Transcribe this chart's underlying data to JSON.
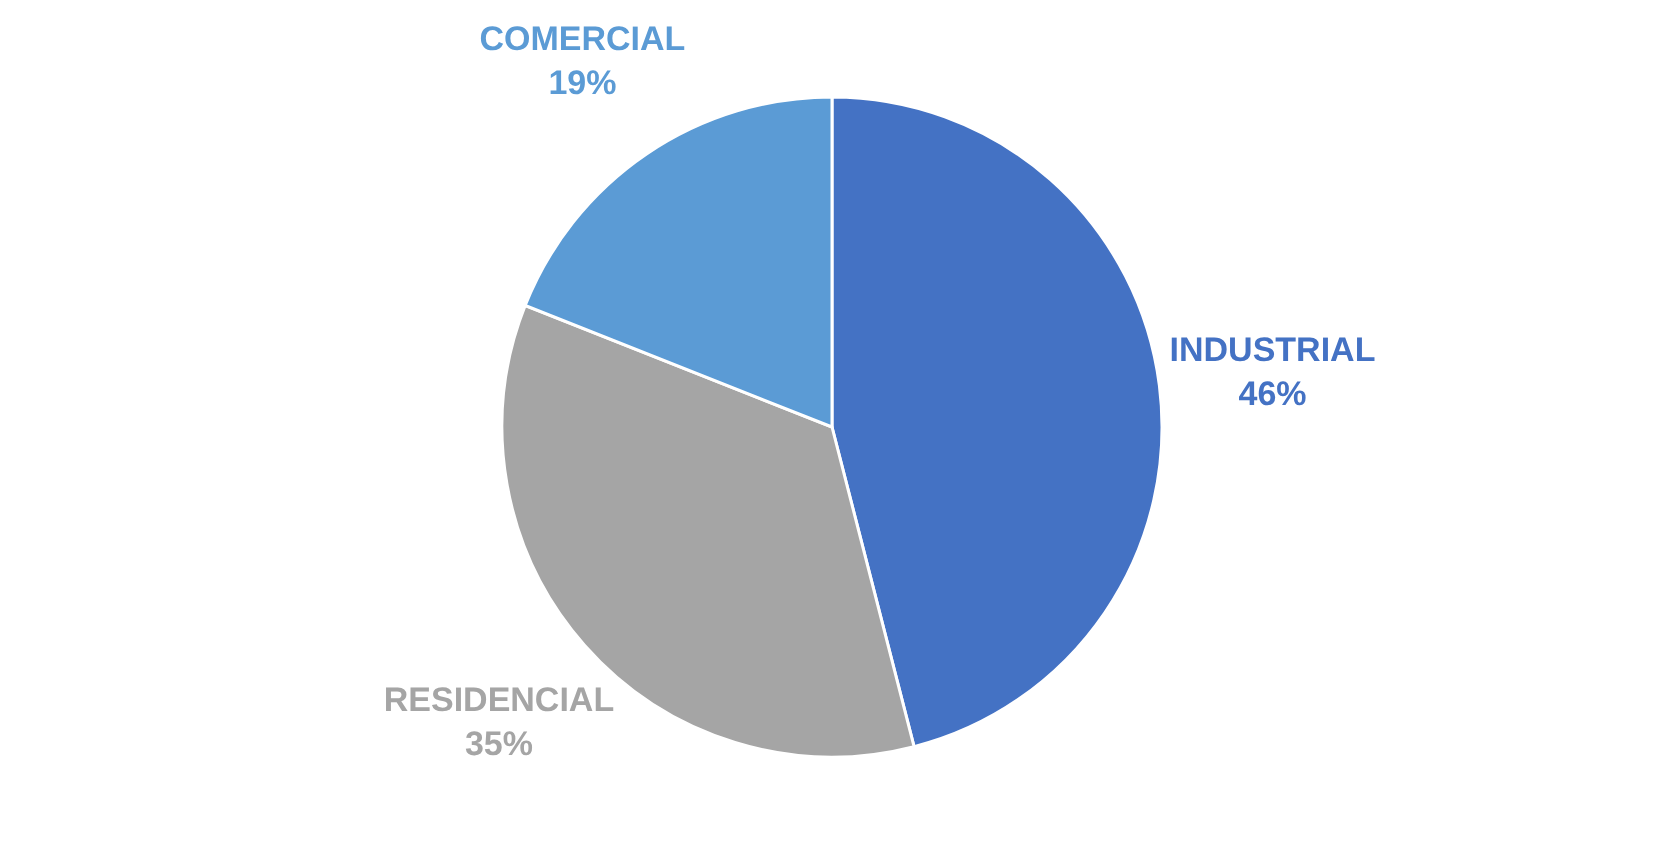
{
  "chart_data": {
    "type": "pie",
    "categories": [
      "INDUSTRIAL",
      "RESIDENCIAL",
      "COMERCIAL"
    ],
    "values": [
      46,
      35,
      19
    ],
    "colors": [
      "#4472c4",
      "#a5a5a5",
      "#5b9bd5"
    ],
    "value_labels": [
      "46%",
      "35%",
      "19%"
    ],
    "legend": false
  }
}
